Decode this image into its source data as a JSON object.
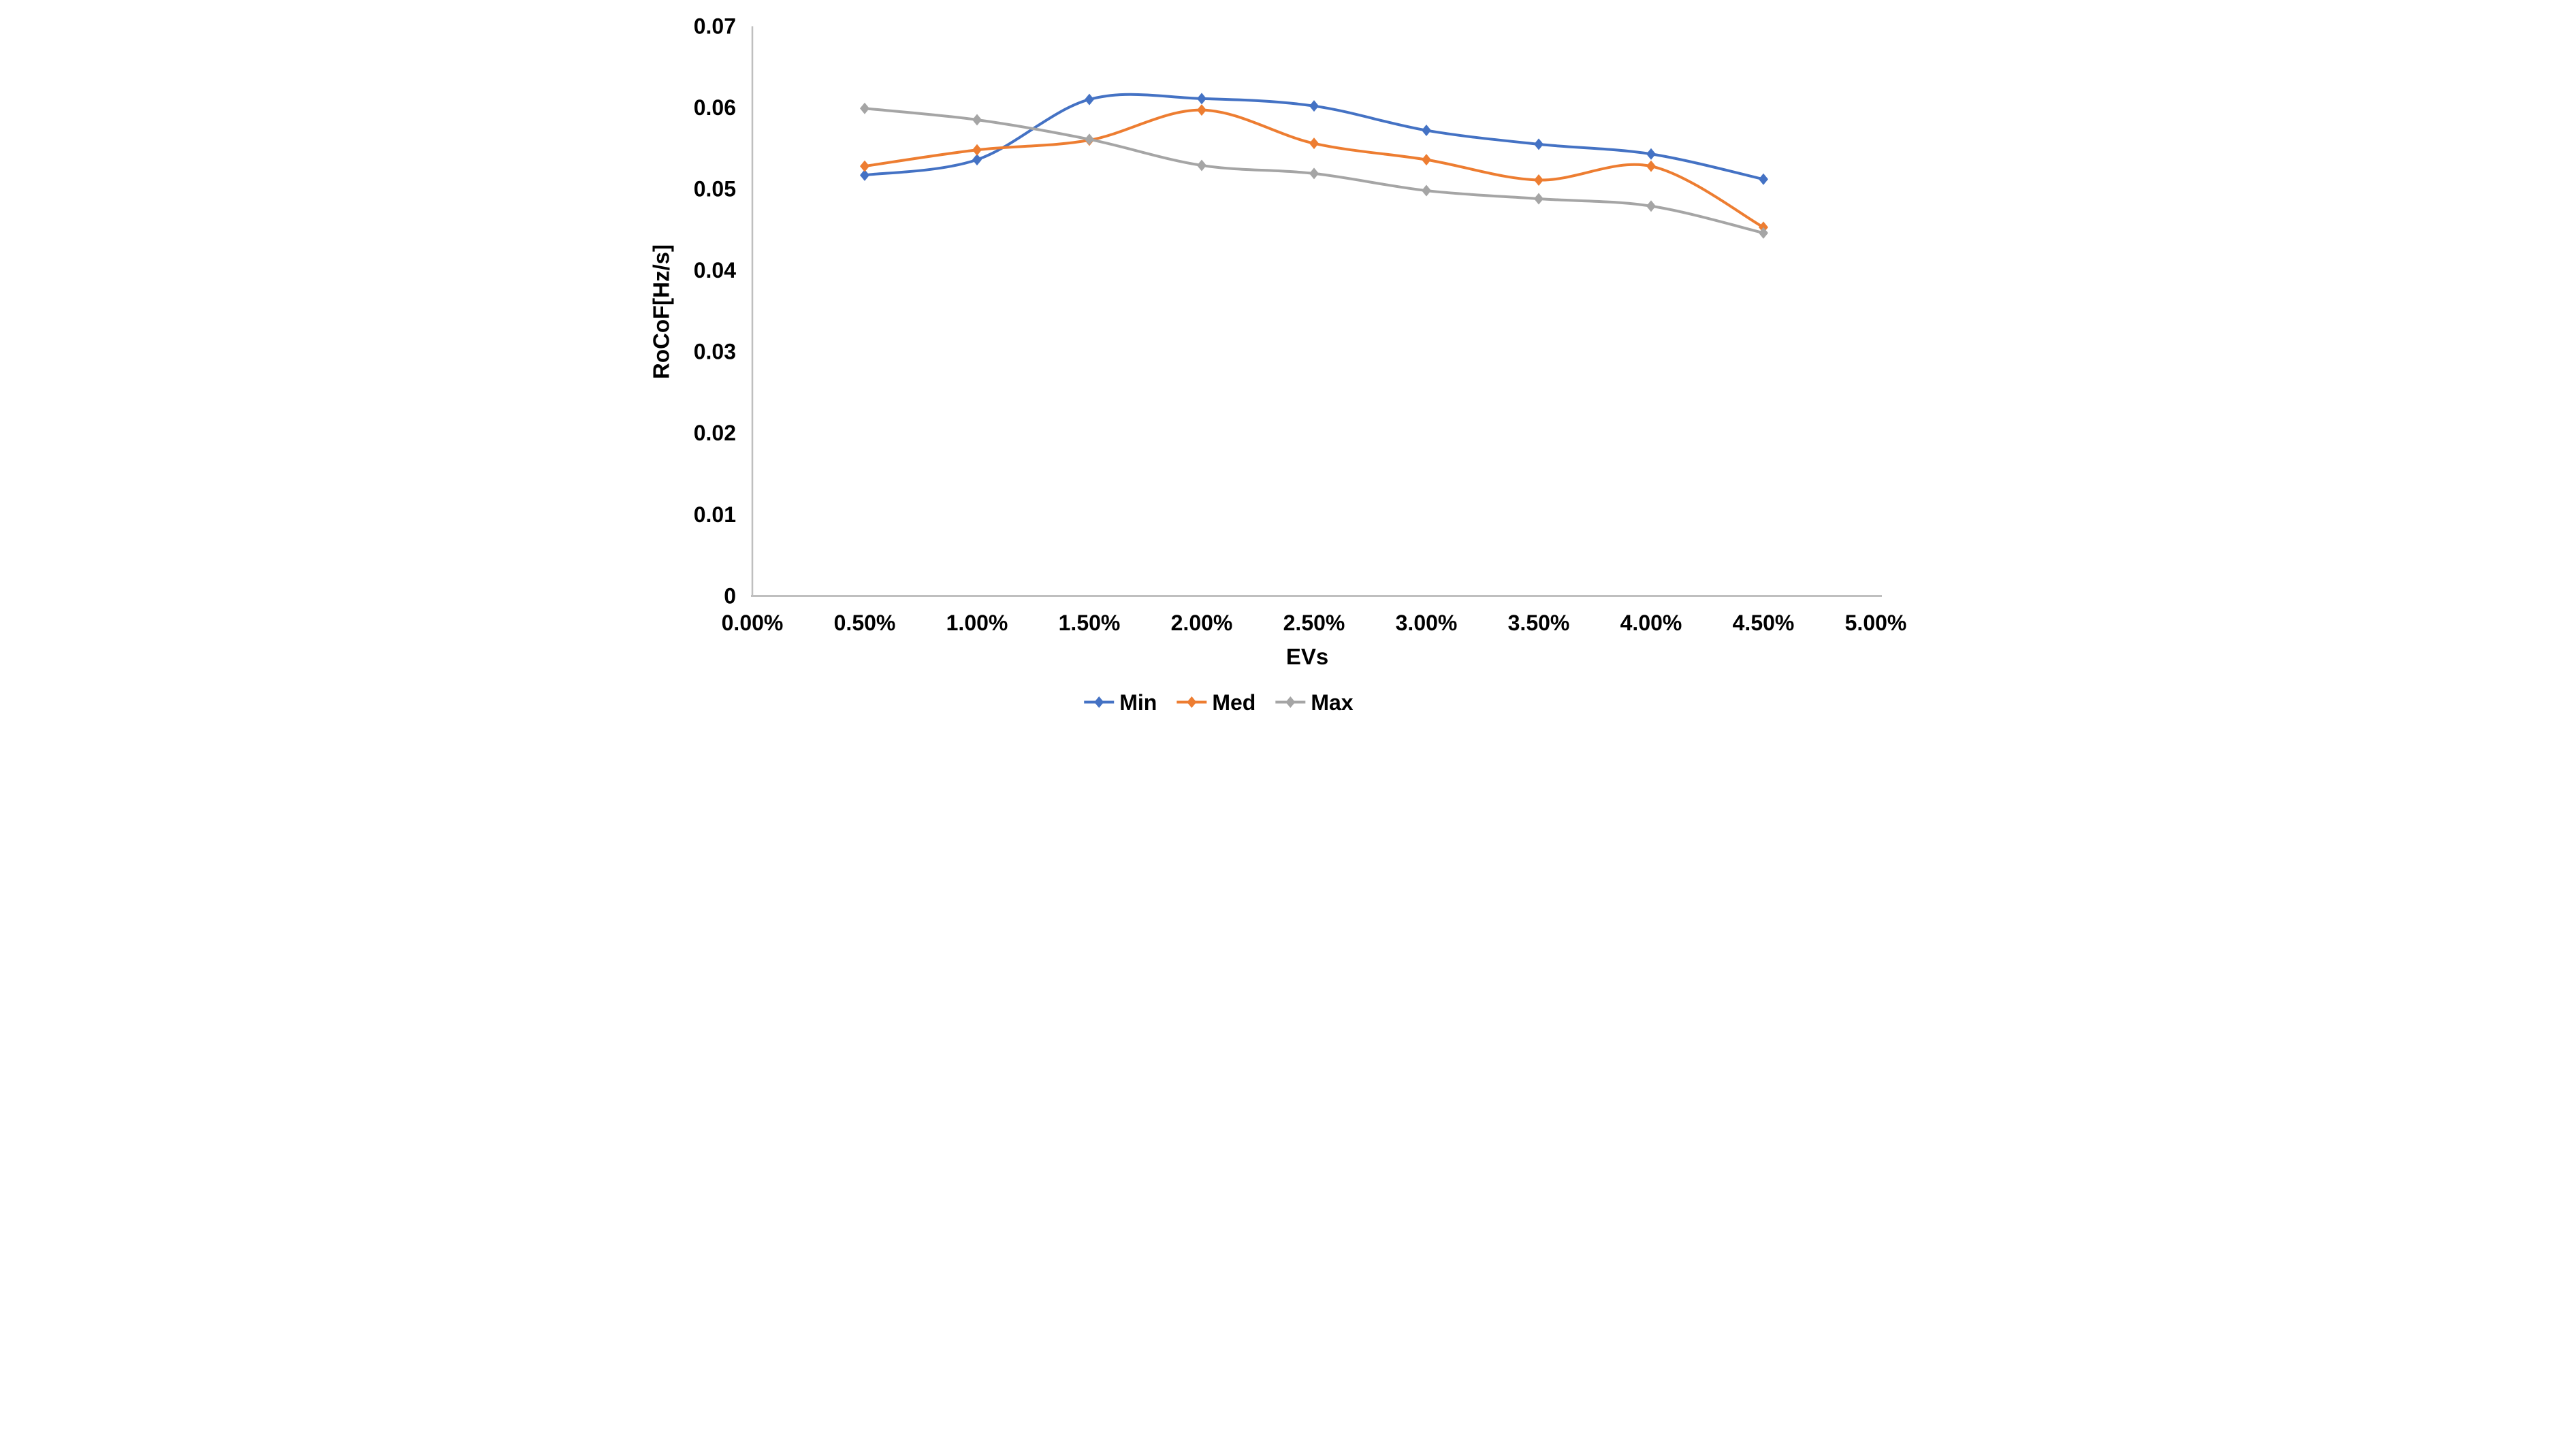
{
  "chart_data": {
    "type": "line",
    "title": "",
    "xlabel": "EVs",
    "ylabel": "RoCoF[Hz/s]",
    "smooth_lines": true,
    "marker": "diamond",
    "grid": false,
    "legend_position": "bottom",
    "xlim": [
      0,
      5
    ],
    "ylim": [
      0,
      0.07
    ],
    "x_unit": "percent",
    "x": [
      0.5,
      1.0,
      1.5,
      2.0,
      2.5,
      3.0,
      3.5,
      4.0,
      4.5
    ],
    "x_tick_values": [
      0,
      0.5,
      1.0,
      1.5,
      2.0,
      2.5,
      3.0,
      3.5,
      4.0,
      4.5,
      5.0
    ],
    "x_tick_labels": [
      "0.00%",
      "0.50%",
      "1.00%",
      "1.50%",
      "2.00%",
      "2.50%",
      "3.00%",
      "3.50%",
      "4.00%",
      "4.50%",
      "5.00%"
    ],
    "y_tick_values": [
      0,
      0.01,
      0.02,
      0.03,
      0.04,
      0.05,
      0.06,
      0.07
    ],
    "y_tick_labels": [
      "0",
      "0.01",
      "0.02",
      "0.03",
      "0.04",
      "0.05",
      "0.06",
      "0.07"
    ],
    "series": [
      {
        "name": "Min",
        "color": "#4472C4",
        "values": [
          0.0517,
          0.0536,
          0.061,
          0.0611,
          0.0602,
          0.0572,
          0.0555,
          0.0543,
          0.0512
        ]
      },
      {
        "name": "Med",
        "color": "#ED7D31",
        "values": [
          0.0528,
          0.0548,
          0.056,
          0.0597,
          0.0556,
          0.0536,
          0.0511,
          0.0528,
          0.0453
        ]
      },
      {
        "name": "Max",
        "color": "#A5A5A5",
        "values": [
          0.0599,
          0.0585,
          0.0561,
          0.0529,
          0.0519,
          0.0498,
          0.0488,
          0.0479,
          0.0446
        ]
      }
    ],
    "axis_color": "#BFBFBF",
    "text_color": "#000000"
  }
}
